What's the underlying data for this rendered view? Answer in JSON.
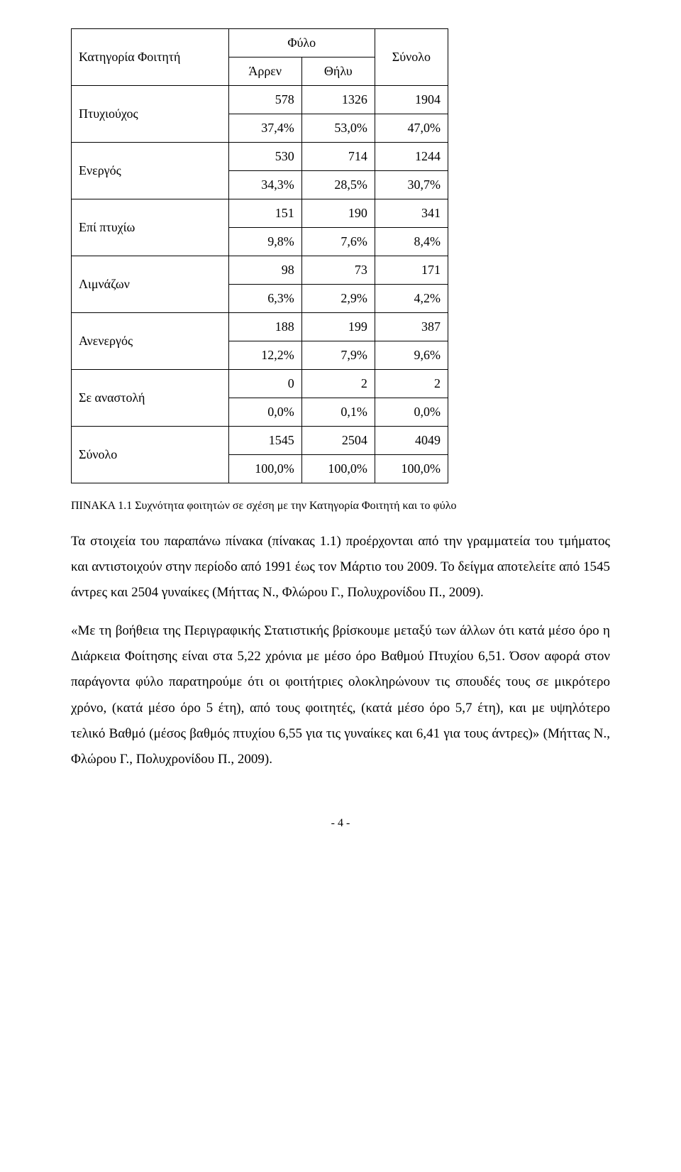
{
  "table": {
    "header": {
      "col0": "Κατηγορία Φοιτητή",
      "gender": "Φύλο",
      "total": "Σύνολο",
      "male": "Άρρεν",
      "female": "Θήλυ"
    },
    "rows": [
      {
        "label": "Πτυχιούχος",
        "a": "578",
        "b": "1326",
        "c": "1904",
        "pa": "37,4%",
        "pb": "53,0%",
        "pc": "47,0%"
      },
      {
        "label": "Ενεργός",
        "a": "530",
        "b": "714",
        "c": "1244",
        "pa": "34,3%",
        "pb": "28,5%",
        "pc": "30,7%"
      },
      {
        "label": "Επί πτυχίω",
        "a": "151",
        "b": "190",
        "c": "341",
        "pa": "9,8%",
        "pb": "7,6%",
        "pc": "8,4%"
      },
      {
        "label": "Λιμνάζων",
        "a": "98",
        "b": "73",
        "c": "171",
        "pa": "6,3%",
        "pb": "2,9%",
        "pc": "4,2%"
      },
      {
        "label": "Ανενεργός",
        "a": "188",
        "b": "199",
        "c": "387",
        "pa": "12,2%",
        "pb": "7,9%",
        "pc": "9,6%"
      },
      {
        "label": "Σε αναστολή",
        "a": "0",
        "b": "2",
        "c": "2",
        "pa": "0,0%",
        "pb": "0,1%",
        "pc": "0,0%"
      },
      {
        "label": "Σύνολο",
        "a": "1545",
        "b": "2504",
        "c": "4049",
        "pa": "100,0%",
        "pb": "100,0%",
        "pc": "100,0%"
      }
    ]
  },
  "caption": "ΠΙΝΑΚΑ 1.1 Συχνότητα φοιτητών σε σχέση με την Κατηγορία Φοιτητή και το φύλο",
  "para1": "Τα στοιχεία του παραπάνω πίνακα (πίνακας 1.1) προέρχονται από την γραμματεία του τμήματος και αντιστοιχούν στην περίοδο από 1991 έως τον Μάρτιο του 2009. Το δείγμα αποτελείτε από 1545 άντρες και 2504 γυναίκες (Μήττας Ν., Φλώρου Γ., Πολυχρονίδου Π., 2009).",
  "para2": "«Με τη βοήθεια της Περιγραφικής Στατιστικής βρίσκουμε μεταξύ των άλλων ότι κατά μέσο όρο η Διάρκεια Φοίτησης είναι στα 5,22 χρόνια με μέσο όρο Βαθμού Πτυχίου 6,51. Όσον αφορά στον παράγοντα φύλο παρατηρούμε ότι οι φοιτήτριες ολοκληρώνουν τις σπουδές τους σε μικρότερο χρόνο, (κατά μέσο όρο 5 έτη), από τους φοιτητές, (κατά μέσο όρο 5,7 έτη), και με υψηλότερο τελικό Βαθμό (μέσος βαθμός πτυχίου 6,55 για τις γυναίκες και 6,41 για τους άντρες)» (Μήττας Ν., Φλώρου Γ., Πολυχρονίδου Π., 2009).",
  "page_number": "- 4 -"
}
